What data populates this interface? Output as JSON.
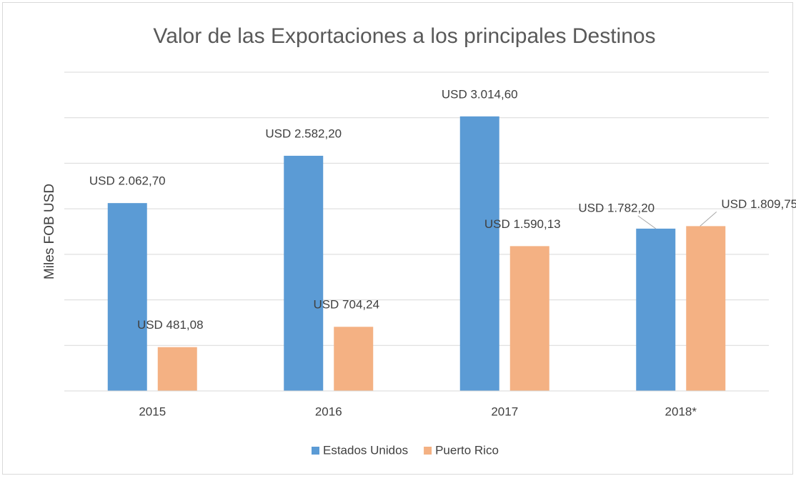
{
  "chart_data": {
    "type": "bar",
    "title": "Valor de las Exportaciones a los principales Destinos",
    "ylabel": "Miles FOB USD",
    "categories": [
      "2015",
      "2016",
      "2017",
      "2018*"
    ],
    "series": [
      {
        "name": "Estados Unidos",
        "color": "#5b9bd5",
        "values": [
          2062.7,
          2582.2,
          3014.6,
          1782.2
        ],
        "value_labels": [
          "USD 2.062,70",
          "USD 2.582,20",
          "USD 3.014,60",
          "USD 1.782,20"
        ]
      },
      {
        "name": "Puerto Rico",
        "color": "#f4b183",
        "values": [
          481.08,
          704.24,
          1590.13,
          1809.75
        ],
        "value_labels": [
          "USD 481,08",
          "USD 704,24",
          "USD 1.590,13",
          "USD 1.809,75"
        ]
      }
    ],
    "ylim": [
      0,
      3500
    ],
    "yticks": [
      0,
      500,
      1000,
      1500,
      2000,
      2500,
      3000,
      3500
    ],
    "grid": true,
    "legend": "bottom"
  }
}
